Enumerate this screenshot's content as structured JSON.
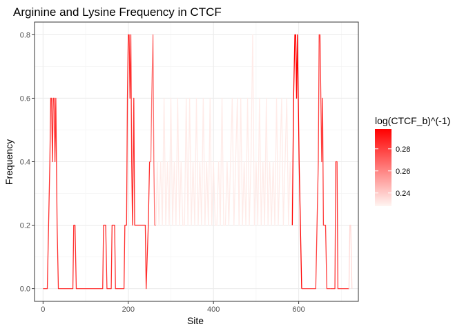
{
  "chart_data": {
    "type": "line",
    "title": "Arginine and Lysine Frequency in CTCF",
    "xlabel": "Site",
    "ylabel": "Frequency",
    "xlim": [
      -20,
      740
    ],
    "ylim": [
      -0.04,
      0.84
    ],
    "x_ticks": [
      0,
      200,
      400,
      600
    ],
    "y_ticks": [
      0.0,
      0.2,
      0.4,
      0.6,
      0.8
    ],
    "x_tick_labels": [
      "0",
      "200",
      "400",
      "600"
    ],
    "y_tick_labels": [
      "0.0",
      "0.2",
      "0.4",
      "0.6",
      "0.8"
    ],
    "grid": true,
    "legend_position": "right",
    "legend": {
      "title": "log(CTCF_b)^(-1)",
      "range": [
        0.228,
        0.298
      ],
      "ticks": [
        0.24,
        0.26,
        0.28
      ],
      "tick_labels": [
        "0.24",
        "0.26",
        "0.28"
      ],
      "low_color": "#fff5f2",
      "high_color": "#ff0000"
    },
    "colors": {
      "low": "#fff5f2",
      "high": "#ff0000"
    },
    "series": [
      {
        "segment": "a",
        "x": [
          0,
          10,
          13,
          16,
          18,
          20,
          22,
          24,
          26,
          28,
          30,
          33,
          36,
          70,
          72,
          75,
          78,
          140,
          142,
          147,
          150,
          160,
          162,
          168,
          170,
          190,
          192,
          196,
          198,
          200,
          202,
          204,
          206,
          208,
          210,
          213,
          215,
          218,
          240,
          242,
          247,
          250
        ],
        "y": [
          0,
          0,
          0.2,
          0.4,
          0.6,
          0.6,
          0.4,
          0.6,
          0.6,
          0.4,
          0.6,
          0.2,
          0,
          0,
          0.2,
          0.2,
          0,
          0,
          0.2,
          0.2,
          0,
          0,
          0.2,
          0.2,
          0,
          0,
          0.2,
          0.2,
          0.6,
          0.8,
          0.8,
          0.6,
          0.8,
          0.4,
          0.2,
          0.6,
          0.2,
          0.2,
          0.2,
          0,
          0.2,
          0.4
        ],
        "value": 0.285
      },
      {
        "segment": "b",
        "x": [
          250,
          253,
          255,
          258,
          260,
          262,
          265
        ],
        "y": [
          0.4,
          0.4,
          0.6,
          0.8,
          0.4,
          0.2,
          0.2
        ],
        "value": 0.266
      },
      {
        "segment": "c",
        "x": [
          265,
          268,
          272,
          276,
          280,
          284,
          288,
          292,
          296,
          300,
          304,
          308,
          312,
          316,
          320,
          324,
          328,
          332,
          336,
          340,
          344,
          348,
          352,
          356,
          360,
          364,
          368,
          372,
          376,
          380,
          384,
          388,
          392,
          396,
          400,
          404,
          408,
          412,
          416,
          420,
          424,
          428,
          432,
          436,
          440,
          444,
          448,
          452,
          456,
          460,
          464,
          468,
          472,
          476,
          480,
          484,
          488,
          492,
          496,
          500,
          504,
          508,
          512,
          516,
          520,
          524,
          528,
          532,
          536,
          540,
          544,
          548,
          552,
          556,
          560,
          564,
          568,
          572,
          576,
          580,
          585
        ],
        "y": [
          0.2,
          0.4,
          0.2,
          0.4,
          0.2,
          0.6,
          0.2,
          0.4,
          0.2,
          0.6,
          0.2,
          0.4,
          0.2,
          0.6,
          0.2,
          0.4,
          0.2,
          0.2,
          0.6,
          0.2,
          0.6,
          0.2,
          0.4,
          0.2,
          0.6,
          0.2,
          0.4,
          0.2,
          0.6,
          0.2,
          0.4,
          0.2,
          0.6,
          0.2,
          0.4,
          0.2,
          0.2,
          0.4,
          0.2,
          0.6,
          0.2,
          0.2,
          0.4,
          0.2,
          0.4,
          0.6,
          0.2,
          0.4,
          0.6,
          0.2,
          0.6,
          0.2,
          0.4,
          0.2,
          0.6,
          0.2,
          0.4,
          0.8,
          0.2,
          0.4,
          0.2,
          0.6,
          0.2,
          0.4,
          0.2,
          0.6,
          0.2,
          0.4,
          0.2,
          0.4,
          0.2,
          0.6,
          0.2,
          0.4,
          0.6,
          0.2,
          0.4,
          0.6,
          0.2,
          0.4,
          0.2
        ],
        "value": 0.231
      },
      {
        "segment": "d",
        "x": [
          585,
          588,
          591,
          593,
          595,
          597,
          599,
          601,
          604,
          607
        ],
        "y": [
          0.2,
          0.6,
          0.8,
          0.8,
          0.6,
          0.8,
          0.6,
          0.4,
          0.2,
          0
        ],
        "value": 0.297
      },
      {
        "segment": "e",
        "x": [
          607,
          640,
          643,
          646,
          648,
          650,
          652,
          654,
          656,
          658,
          660,
          663,
          666,
          669,
          672,
          675
        ],
        "y": [
          0,
          0,
          0.2,
          0.4,
          0.8,
          0.8,
          0.6,
          0.4,
          0.6,
          0.2,
          0.2,
          0.2,
          0,
          0,
          0,
          0
        ],
        "value": 0.28
      },
      {
        "segment": "f",
        "x": [
          675,
          685,
          687,
          690,
          692,
          695,
          700,
          710,
          712,
          715,
          718
        ],
        "y": [
          0,
          0,
          0.4,
          0.4,
          0,
          0,
          0,
          0,
          0,
          0,
          0
        ],
        "value": 0.282
      },
      {
        "segment": "g",
        "x": [
          718,
          720,
          722,
          725
        ],
        "y": [
          0,
          0.2,
          0.2,
          0
        ],
        "value": 0.236
      }
    ]
  }
}
